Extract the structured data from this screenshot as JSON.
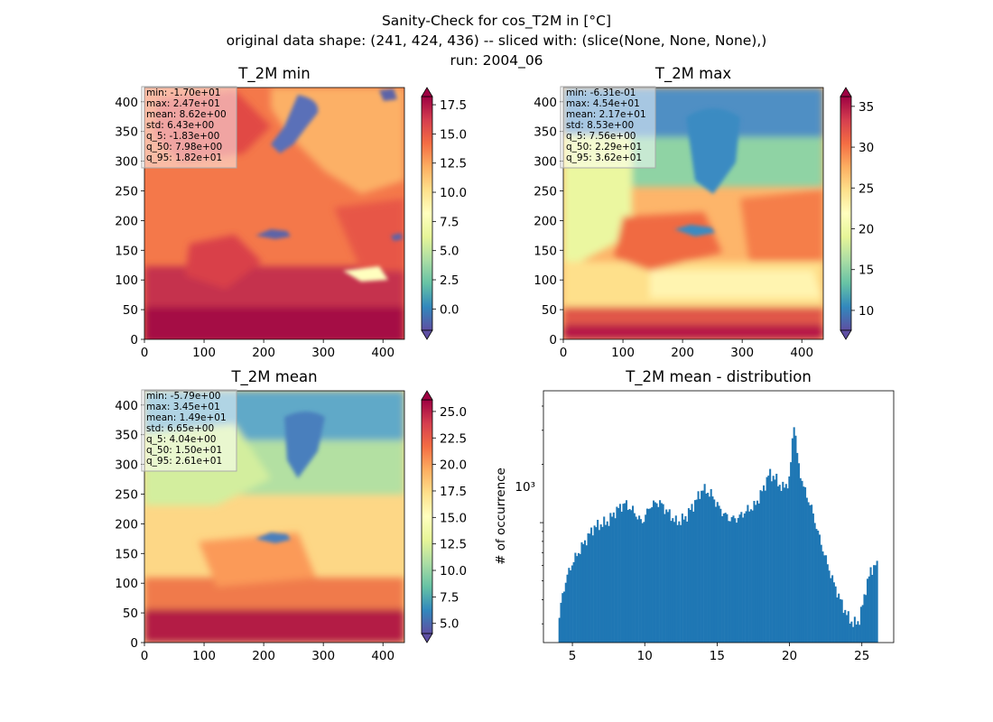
{
  "figure": {
    "title_lines": [
      "Sanity-Check for cos_T2M in [°C]",
      "original data shape: (241, 424, 436) -- sliced with: (slice(None, None, None),)",
      "run: 2004_06"
    ]
  },
  "panels": {
    "min": {
      "title": "T_2M min",
      "stats": [
        "min: -1.70e+01",
        "max: 2.47e+01",
        "mean: 8.62e+00",
        "std: 6.43e+00",
        "q_5: -1.83e+00",
        "q_50: 7.98e+00",
        "q_95: 1.82e+01"
      ],
      "colorbar_ticks": [
        "0.0",
        "2.5",
        "5.0",
        "7.5",
        "10.0",
        "12.5",
        "15.0",
        "17.5"
      ]
    },
    "max": {
      "title": "T_2M max",
      "stats": [
        "min: -6.31e-01",
        "max: 4.54e+01",
        "mean: 2.17e+01",
        "std: 8.53e+00",
        "q_5: 7.56e+00",
        "q_50: 2.29e+01",
        "q_95: 3.62e+01"
      ],
      "colorbar_ticks": [
        "10",
        "15",
        "20",
        "25",
        "30",
        "35"
      ]
    },
    "mean": {
      "title": "T_2M mean",
      "stats": [
        "min: -5.79e+00",
        "max: 3.45e+01",
        "mean: 1.49e+01",
        "std: 6.65e+00",
        "q_5: 4.04e+00",
        "q_50: 1.50e+01",
        "q_95: 2.61e+01"
      ],
      "colorbar_ticks": [
        "5.0",
        "7.5",
        "10.0",
        "12.5",
        "15.0",
        "17.5",
        "20.0",
        "22.5",
        "25.0"
      ]
    },
    "hist": {
      "title": "T_2M mean - distribution",
      "ylabel": "# of occurrence",
      "ytick_label": "10³",
      "xticks": [
        "5",
        "10",
        "15",
        "20",
        "25"
      ]
    }
  },
  "map_axes": {
    "xticks": [
      "0",
      "100",
      "200",
      "300",
      "400"
    ],
    "yticks": [
      "0",
      "50",
      "100",
      "150",
      "200",
      "250",
      "300",
      "350",
      "400"
    ]
  },
  "colors": {
    "bar": "#1f77b4"
  },
  "chart_data": [
    {
      "type": "heatmap",
      "title": "T_2M min",
      "colormap": "Spectral_r",
      "x_range": [
        0,
        436
      ],
      "y_range": [
        0,
        424
      ],
      "colorbar_range": [
        -1.83,
        18.2
      ],
      "colorbar_extend": "both"
    },
    {
      "type": "heatmap",
      "title": "T_2M max",
      "colormap": "Spectral_r",
      "x_range": [
        0,
        436
      ],
      "y_range": [
        0,
        424
      ],
      "colorbar_range": [
        7.56,
        36.2
      ],
      "colorbar_extend": "both"
    },
    {
      "type": "heatmap",
      "title": "T_2M mean",
      "colormap": "Spectral_r",
      "x_range": [
        0,
        436
      ],
      "y_range": [
        0,
        424
      ],
      "colorbar_range": [
        4.04,
        26.1
      ],
      "colorbar_extend": "both"
    },
    {
      "type": "bar",
      "title": "T_2M mean - distribution",
      "ylabel": "# of occurrence",
      "yscale": "log",
      "ylim": [
        240,
        4800
      ],
      "xlim": [
        3.0,
        27.2
      ],
      "bin_range": [
        4.04,
        26.1
      ],
      "bin_count": 200,
      "bin_width": 0.1103,
      "profile_x": [
        4.04,
        4.3,
        4.6,
        5.0,
        5.5,
        6.0,
        6.5,
        7.0,
        7.5,
        8.0,
        8.6,
        9.2,
        9.8,
        10.4,
        11.0,
        11.6,
        12.2,
        12.8,
        13.4,
        14.0,
        14.6,
        15.2,
        15.8,
        16.4,
        17.0,
        17.6,
        18.2,
        18.6,
        19.0,
        19.5,
        20.0,
        20.3,
        20.6,
        21.0,
        21.5,
        22.0,
        22.5,
        23.0,
        23.5,
        24.0,
        24.4,
        24.8,
        25.0,
        25.3,
        25.6,
        25.9,
        26.1
      ],
      "profile_y": [
        300,
        420,
        520,
        620,
        720,
        830,
        950,
        980,
        1020,
        1150,
        1260,
        1150,
        1000,
        1230,
        1280,
        1130,
        1000,
        1060,
        1250,
        1500,
        1400,
        1170,
        1050,
        1050,
        1150,
        1220,
        1500,
        1800,
        1700,
        1500,
        1650,
        3400,
        2000,
        1500,
        1200,
        870,
        650,
        500,
        400,
        330,
        300,
        310,
        360,
        470,
        560,
        610,
        590
      ]
    }
  ]
}
